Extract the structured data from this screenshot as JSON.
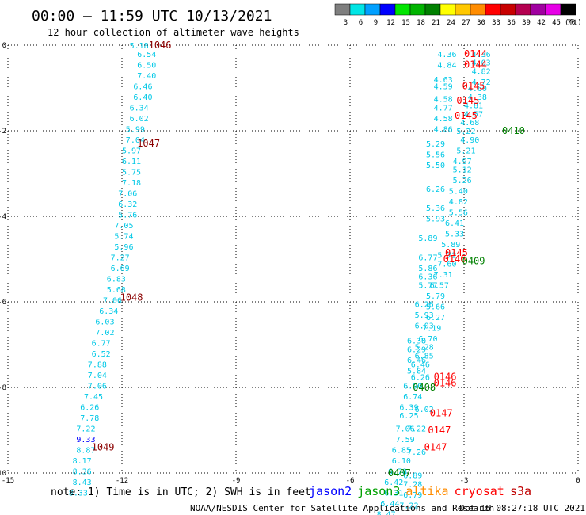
{
  "header": {
    "title": "00:00 – 11:59 UTC 10/13/2021",
    "subtitle": "12 hour collection of altimeter wave heights"
  },
  "scale": {
    "unit": "(ft)",
    "bins": [
      {
        "label": "3",
        "color": "#7f7f7f"
      },
      {
        "label": "6",
        "color": "#00e5e5"
      },
      {
        "label": "9",
        "color": "#00a0ff"
      },
      {
        "label": "12",
        "color": "#0000ff"
      },
      {
        "label": "15",
        "color": "#00e500"
      },
      {
        "label": "18",
        "color": "#00b400"
      },
      {
        "label": "21",
        "color": "#008000"
      },
      {
        "label": "24",
        "color": "#ffff00"
      },
      {
        "label": "27",
        "color": "#ffc800"
      },
      {
        "label": "30",
        "color": "#ff8c00"
      },
      {
        "label": "33",
        "color": "#ff0000"
      },
      {
        "label": "36",
        "color": "#c80000"
      },
      {
        "label": "39",
        "color": "#b40050"
      },
      {
        "label": "42",
        "color": "#a000a0"
      },
      {
        "label": "45",
        "color": "#e600e6"
      },
      {
        "label": "70",
        "color": "#000000"
      }
    ]
  },
  "footer": {
    "note": "note: 1) Time is in UTC; 2) SWH is in feet",
    "credit": "NOAA/NESDIS Center for Satellite Applications and Research",
    "timestamp": "Oct 16 08:27:18 UTC 2021",
    "satellites": [
      {
        "name": "jason2",
        "color": "#0000ff"
      },
      {
        "name": "jason3",
        "color": "#00a000"
      },
      {
        "name": "altika",
        "color": "#ff8c00"
      },
      {
        "name": "cryosat",
        "color": "#ff0000"
      },
      {
        "name": "s3a",
        "color": "#c00000"
      }
    ]
  },
  "chart_data": {
    "type": "scatter",
    "grid": true,
    "xlim": [
      -15,
      0
    ],
    "ylim": [
      -10,
      0
    ],
    "x_ticks": [
      "-15",
      "-12",
      "-9",
      "-6",
      "-3",
      "0"
    ],
    "y_ticks": [
      "0",
      "-2",
      "-4",
      "-6",
      "-8",
      "-10"
    ],
    "track_labels": [
      {
        "text": "1046",
        "x": -11.3,
        "y": 0.0,
        "color": "#8b0000"
      },
      {
        "text": "1047",
        "x": -11.6,
        "y": -2.3,
        "color": "#8b0000"
      },
      {
        "text": "1048",
        "x": -12.05,
        "y": -5.9,
        "color": "#8b0000"
      },
      {
        "text": "1049",
        "x": -12.8,
        "y": -9.4,
        "color": "#8b0000"
      },
      {
        "text": "0144",
        "x": -3.0,
        "y": -0.2,
        "color": "#ff0000"
      },
      {
        "text": "0144",
        "x": -3.0,
        "y": -0.45,
        "color": "#ff0000"
      },
      {
        "text": "0145",
        "x": -3.05,
        "y": -0.95,
        "color": "#ff0000"
      },
      {
        "text": "0145",
        "x": -3.2,
        "y": -1.3,
        "color": "#ff0000"
      },
      {
        "text": "0145",
        "x": -3.25,
        "y": -1.65,
        "color": "#ff0000"
      },
      {
        "text": "0410",
        "x": -2.0,
        "y": -2.0,
        "color": "#008000"
      },
      {
        "text": "0145",
        "x": -3.5,
        "y": -4.85,
        "color": "#ff0000"
      },
      {
        "text": "0146",
        "x": -3.55,
        "y": -5.0,
        "color": "#ff0000"
      },
      {
        "text": "0409",
        "x": -3.05,
        "y": -5.05,
        "color": "#008000"
      },
      {
        "text": "0146",
        "x": -3.8,
        "y": -7.75,
        "color": "#ff0000"
      },
      {
        "text": "0146",
        "x": -3.8,
        "y": -7.9,
        "color": "#ff0000"
      },
      {
        "text": "0408",
        "x": -4.35,
        "y": -8.0,
        "color": "#008000"
      },
      {
        "text": "0147",
        "x": -3.9,
        "y": -8.6,
        "color": "#ff0000"
      },
      {
        "text": "0147",
        "x": -3.95,
        "y": -9.0,
        "color": "#ff0000"
      },
      {
        "text": "0147",
        "x": -4.05,
        "y": -9.4,
        "color": "#ff0000"
      },
      {
        "text": "0407",
        "x": -5.0,
        "y": -10.0,
        "color": "#008000"
      }
    ],
    "tracks": [
      {
        "color": "#00c8e6",
        "points": [
          {
            "x": -11.8,
            "y": 0.0,
            "v": "5.18"
          },
          {
            "x": -11.6,
            "y": -0.2,
            "v": "6.54"
          },
          {
            "x": -11.6,
            "y": -0.45,
            "v": "6.50"
          },
          {
            "x": -11.6,
            "y": -0.7,
            "v": "7.40"
          },
          {
            "x": -11.7,
            "y": -0.95,
            "v": "6.46"
          },
          {
            "x": -11.7,
            "y": -1.2,
            "v": "6.40"
          },
          {
            "x": -11.8,
            "y": -1.45,
            "v": "6.34"
          },
          {
            "x": -11.8,
            "y": -1.7,
            "v": "6.02"
          },
          {
            "x": -11.9,
            "y": -1.95,
            "v": "5.99"
          },
          {
            "x": -11.9,
            "y": -2.2,
            "v": "7.04"
          },
          {
            "x": -12.0,
            "y": -2.45,
            "v": "5.97"
          },
          {
            "x": -12.0,
            "y": -2.7,
            "v": "6.11"
          },
          {
            "x": -12.0,
            "y": -2.95,
            "v": "5.75"
          },
          {
            "x": -12.0,
            "y": -3.2,
            "v": "7.18"
          },
          {
            "x": -12.1,
            "y": -3.45,
            "v": "7.06"
          },
          {
            "x": -12.1,
            "y": -3.7,
            "v": "6.32"
          },
          {
            "x": -12.1,
            "y": -3.95,
            "v": "5.76"
          },
          {
            "x": -12.2,
            "y": -4.2,
            "v": "7.05"
          },
          {
            "x": -12.2,
            "y": -4.45,
            "v": "5.74"
          },
          {
            "x": -12.2,
            "y": -4.7,
            "v": "5.96"
          },
          {
            "x": -12.3,
            "y": -4.95,
            "v": "7.27"
          },
          {
            "x": -12.3,
            "y": -5.2,
            "v": "6.69"
          },
          {
            "x": -12.4,
            "y": -5.45,
            "v": "6.83"
          },
          {
            "x": -12.4,
            "y": -5.7,
            "v": "5.68"
          },
          {
            "x": -12.5,
            "y": -5.95,
            "v": "7.06"
          },
          {
            "x": -12.6,
            "y": -6.2,
            "v": "6.34"
          },
          {
            "x": -12.7,
            "y": -6.45,
            "v": "6.03"
          },
          {
            "x": -12.7,
            "y": -6.7,
            "v": "7.02"
          },
          {
            "x": -12.8,
            "y": -6.95,
            "v": "6.77"
          },
          {
            "x": -12.8,
            "y": -7.2,
            "v": "6.52"
          },
          {
            "x": -12.9,
            "y": -7.45,
            "v": "7.88"
          },
          {
            "x": -12.9,
            "y": -7.7,
            "v": "7.04"
          },
          {
            "x": -12.9,
            "y": -7.95,
            "v": "7.06"
          },
          {
            "x": -13.0,
            "y": -8.2,
            "v": "7.45"
          },
          {
            "x": -13.1,
            "y": -8.45,
            "v": "6.26"
          },
          {
            "x": -13.1,
            "y": -8.7,
            "v": "7.78"
          },
          {
            "x": -13.2,
            "y": -8.95,
            "v": "7.22"
          },
          {
            "x": -13.2,
            "y": -9.45,
            "v": "8.87"
          },
          {
            "x": -13.3,
            "y": -9.7,
            "v": "8.17"
          },
          {
            "x": -13.3,
            "y": -9.95,
            "v": "8.36"
          },
          {
            "x": -13.3,
            "y": -10.2,
            "v": "8.43"
          },
          {
            "x": -13.4,
            "y": -10.45,
            "v": "8.33"
          }
        ]
      },
      {
        "color": "#0000ff",
        "points": [
          {
            "x": -13.2,
            "y": -9.2,
            "v": "9.33"
          }
        ]
      },
      {
        "color": "#00c8e6",
        "points": [
          {
            "x": -3.7,
            "y": -0.2,
            "v": "4.36"
          },
          {
            "x": -3.7,
            "y": -0.45,
            "v": "4.84"
          },
          {
            "x": -3.8,
            "y": -0.8,
            "v": "4.63"
          },
          {
            "x": -3.8,
            "y": -0.95,
            "v": "4.59"
          },
          {
            "x": -3.8,
            "y": -1.25,
            "v": "4.58"
          },
          {
            "x": -3.8,
            "y": -1.45,
            "v": "4.77"
          },
          {
            "x": -3.8,
            "y": -1.7,
            "v": "4.58"
          },
          {
            "x": -3.8,
            "y": -1.95,
            "v": "4.86"
          },
          {
            "x": -4.0,
            "y": -2.3,
            "v": "5.29"
          },
          {
            "x": -4.0,
            "y": -2.55,
            "v": "5.56"
          },
          {
            "x": -4.0,
            "y": -2.8,
            "v": "5.50"
          },
          {
            "x": -4.0,
            "y": -3.35,
            "v": "6.26"
          },
          {
            "x": -4.0,
            "y": -3.8,
            "v": "5.36"
          },
          {
            "x": -4.0,
            "y": -4.05,
            "v": "5.93"
          },
          {
            "x": -4.2,
            "y": -4.5,
            "v": "5.89"
          },
          {
            "x": -4.2,
            "y": -4.95,
            "v": "6.77"
          },
          {
            "x": -4.2,
            "y": -5.2,
            "v": "5.86"
          },
          {
            "x": -4.2,
            "y": -5.4,
            "v": "6.36"
          },
          {
            "x": -4.2,
            "y": -5.6,
            "v": "5.77"
          },
          {
            "x": -4.3,
            "y": -6.05,
            "v": "6.26"
          },
          {
            "x": -4.3,
            "y": -6.3,
            "v": "5.93"
          },
          {
            "x": -4.3,
            "y": -6.55,
            "v": "6.03"
          },
          {
            "x": -4.5,
            "y": -6.9,
            "v": "6.38"
          },
          {
            "x": -4.5,
            "y": -7.1,
            "v": "6.29"
          },
          {
            "x": -4.5,
            "y": -7.35,
            "v": "6.46"
          },
          {
            "x": -4.5,
            "y": -7.6,
            "v": "5.84"
          },
          {
            "x": -4.6,
            "y": -7.95,
            "v": "6.90"
          },
          {
            "x": -4.6,
            "y": -8.2,
            "v": "6.74"
          },
          {
            "x": -4.7,
            "y": -8.45,
            "v": "6.39"
          },
          {
            "x": -4.7,
            "y": -8.65,
            "v": "6.25"
          },
          {
            "x": -4.8,
            "y": -8.95,
            "v": "7.06"
          },
          {
            "x": -4.8,
            "y": -9.2,
            "v": "7.59"
          },
          {
            "x": -4.9,
            "y": -9.45,
            "v": "6.85"
          },
          {
            "x": -4.9,
            "y": -9.7,
            "v": "6.10"
          },
          {
            "x": -5.0,
            "y": -9.95,
            "v": "6.78"
          },
          {
            "x": -5.1,
            "y": -10.2,
            "v": "6.42"
          },
          {
            "x": -5.1,
            "y": -10.45,
            "v": "6.31"
          },
          {
            "x": -5.2,
            "y": -10.7,
            "v": "6.44"
          },
          {
            "x": -5.3,
            "y": -10.95,
            "v": "8.47"
          },
          {
            "x": -2.8,
            "y": -0.2,
            "v": "4.36"
          },
          {
            "x": -2.8,
            "y": -0.4,
            "v": "4.03"
          },
          {
            "x": -2.8,
            "y": -0.6,
            "v": "4.82"
          },
          {
            "x": -2.8,
            "y": -0.85,
            "v": "4.72"
          },
          {
            "x": -2.9,
            "y": -1.0,
            "v": "4.60"
          },
          {
            "x": -2.9,
            "y": -1.2,
            "v": "4.38"
          },
          {
            "x": -3.0,
            "y": -1.4,
            "v": "4.81"
          },
          {
            "x": -3.0,
            "y": -1.6,
            "v": "4.57"
          },
          {
            "x": -3.1,
            "y": -1.8,
            "v": "4.68"
          },
          {
            "x": -3.2,
            "y": -2.0,
            "v": "5.22"
          },
          {
            "x": -3.1,
            "y": -2.2,
            "v": "4.90"
          },
          {
            "x": -3.2,
            "y": -2.45,
            "v": "5.21"
          },
          {
            "x": -3.3,
            "y": -2.7,
            "v": "4.97"
          },
          {
            "x": -3.3,
            "y": -2.9,
            "v": "5.12"
          },
          {
            "x": -3.3,
            "y": -3.15,
            "v": "5.26"
          },
          {
            "x": -3.4,
            "y": -3.4,
            "v": "5.40"
          },
          {
            "x": -3.4,
            "y": -3.65,
            "v": "4.82"
          },
          {
            "x": -3.4,
            "y": -3.9,
            "v": "5.56"
          },
          {
            "x": -3.5,
            "y": -4.15,
            "v": "6.41"
          },
          {
            "x": -3.5,
            "y": -4.4,
            "v": "5.33"
          },
          {
            "x": -3.6,
            "y": -4.65,
            "v": "5.89"
          },
          {
            "x": -3.7,
            "y": -4.9,
            "v": "5.72"
          },
          {
            "x": -3.7,
            "y": -5.1,
            "v": "7.60"
          },
          {
            "x": -3.8,
            "y": -5.35,
            "v": "7.31"
          },
          {
            "x": -3.9,
            "y": -5.6,
            "v": "6.57"
          },
          {
            "x": -4.0,
            "y": -5.85,
            "v": "5.79"
          },
          {
            "x": -4.0,
            "y": -6.1,
            "v": "5.66"
          },
          {
            "x": -4.0,
            "y": -6.35,
            "v": "6.27"
          },
          {
            "x": -4.1,
            "y": -6.6,
            "v": "7.19"
          },
          {
            "x": -4.2,
            "y": -6.85,
            "v": "6.70"
          },
          {
            "x": -4.3,
            "y": -7.05,
            "v": "5.28"
          },
          {
            "x": -4.3,
            "y": -7.25,
            "v": "6.85"
          },
          {
            "x": -4.4,
            "y": -7.45,
            "v": "6.46"
          },
          {
            "x": -4.4,
            "y": -7.75,
            "v": "6.26"
          },
          {
            "x": -4.3,
            "y": -8.5,
            "v": "6.02"
          },
          {
            "x": -4.5,
            "y": -8.95,
            "v": "7.22"
          },
          {
            "x": -4.5,
            "y": -9.5,
            "v": "7.26"
          },
          {
            "x": -4.6,
            "y": -10.05,
            "v": "6.89"
          },
          {
            "x": -4.6,
            "y": -10.25,
            "v": "7.28"
          },
          {
            "x": -4.6,
            "y": -10.5,
            "v": "6.79"
          },
          {
            "x": -4.7,
            "y": -10.75,
            "v": "7.22"
          }
        ]
      }
    ]
  }
}
